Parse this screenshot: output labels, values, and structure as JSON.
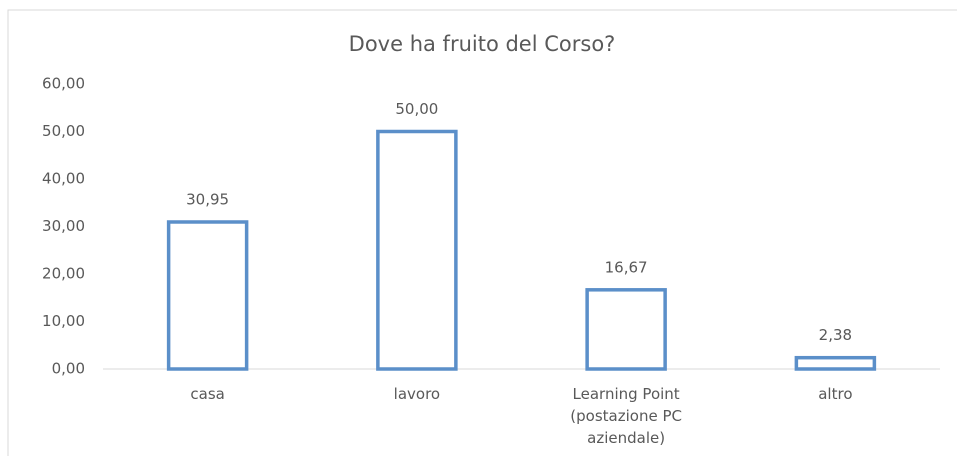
{
  "chart_data": {
    "type": "bar",
    "title": "Dove ha fruito del Corso?",
    "categories": [
      "casa",
      "lavoro",
      "Learning Point (postazione PC aziendale)",
      "altro"
    ],
    "values": [
      30.95,
      50.0,
      16.67,
      2.38
    ],
    "value_labels": [
      "30,95",
      "50,00",
      "16,67",
      "2,38"
    ],
    "color": "#5b8fc9",
    "ylim": [
      0,
      60
    ],
    "yticks": [
      {
        "value": 0,
        "label": "0,00"
      },
      {
        "value": 10,
        "label": "10,00"
      },
      {
        "value": 20,
        "label": "20,00"
      },
      {
        "value": 30,
        "label": "30,00"
      },
      {
        "value": 40,
        "label": "40,00"
      },
      {
        "value": 50,
        "label": "50,00"
      },
      {
        "value": 60,
        "label": "60,00"
      }
    ],
    "grid": false
  }
}
